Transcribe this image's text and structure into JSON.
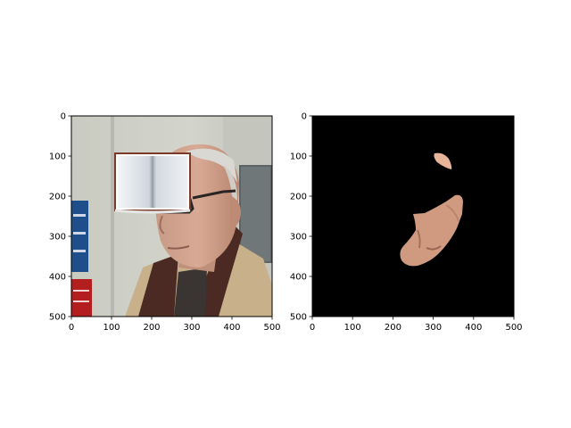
{
  "figure": {
    "panels": [
      {
        "name": "photo",
        "image_subject": "elderly man with glasses and scarf, book icon overlay on forehead",
        "x_ticks": [
          "0",
          "100",
          "200",
          "300",
          "400",
          "500"
        ],
        "y_ticks": [
          "0",
          "100",
          "200",
          "300",
          "400",
          "500"
        ]
      },
      {
        "name": "mask",
        "image_subject": "segmented skin regions on black background",
        "x_ticks": [
          "0",
          "100",
          "200",
          "300",
          "400",
          "500"
        ],
        "y_ticks": [
          "0",
          "100",
          "200",
          "300",
          "400",
          "500"
        ]
      }
    ],
    "colors": {
      "mask_background": "#000000",
      "skin": "#d29b7f",
      "coat": "#c8b08a",
      "scarf": "#4a2a22",
      "wall": "#cfd0c6"
    }
  }
}
